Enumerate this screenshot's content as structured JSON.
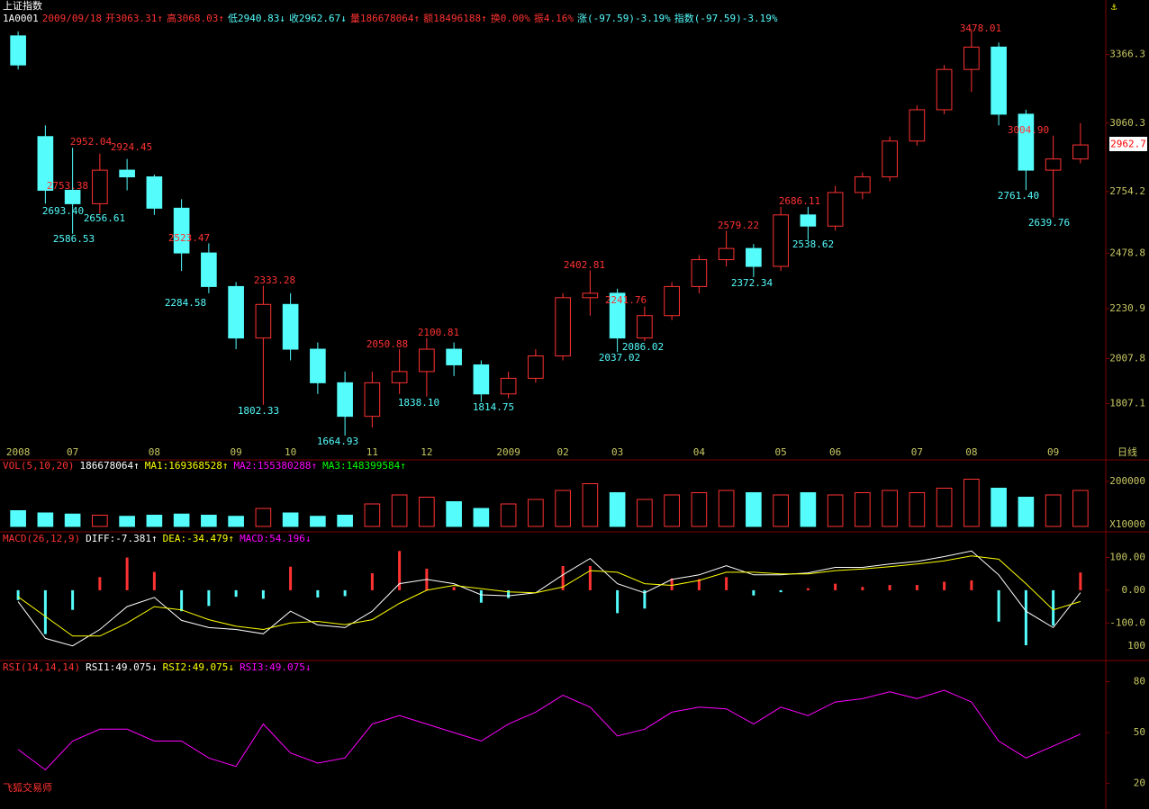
{
  "header": {
    "title": "上证指数",
    "quote": [
      "1A0001",
      "2009/09/18",
      "开3063.31↑",
      "高3068.03↑",
      "低2940.83↓",
      "收2962.67↓",
      "量186678064↑",
      "额18496188↑",
      "换0.00%",
      "振4.16%",
      "涨(-97.59)-3.19%",
      "指数(-97.59)-3.19%"
    ]
  },
  "chart_data": [
    {
      "type": "candlestick",
      "period": "日线",
      "last_label": "2962.7",
      "up_color": "#ff3232",
      "down_color": "#54fcfc",
      "categories": [
        "2008",
        null,
        "07",
        null,
        null,
        "08",
        null,
        null,
        "09",
        null,
        "10",
        null,
        null,
        "11",
        null,
        "12",
        null,
        null,
        "2009",
        null,
        "02",
        null,
        "03",
        null,
        null,
        "04",
        null,
        null,
        "05",
        null,
        "06",
        null,
        null,
        "07",
        null,
        "08",
        null,
        null,
        "09",
        null
      ],
      "open": [
        3450,
        3000,
        2760,
        2700,
        2850,
        2820,
        2680,
        2480,
        2330,
        2100,
        2250,
        2050,
        1900,
        1750,
        1900,
        1950,
        2050,
        1980,
        1850,
        1920,
        2020,
        2280,
        2300,
        2100,
        2200,
        2330,
        2450,
        2500,
        2420,
        2650,
        2600,
        2750,
        2820,
        2980,
        3120,
        3300,
        3400,
        3100,
        2850,
        2900
      ],
      "high": [
        3470,
        3050,
        2950,
        2924,
        2900,
        2830,
        2720,
        2523,
        2350,
        2333,
        2300,
        2080,
        1950,
        1950,
        2050,
        2100,
        2080,
        2000,
        1950,
        2050,
        2300,
        2402,
        2320,
        2241,
        2350,
        2470,
        2579,
        2520,
        2686,
        2686,
        2780,
        2840,
        3000,
        3140,
        3320,
        3478,
        3420,
        3120,
        3004,
        3060
      ],
      "low": [
        3300,
        2700,
        2566,
        2656,
        2760,
        2650,
        2400,
        2300,
        2050,
        1802,
        2000,
        1850,
        1664,
        1700,
        1850,
        1838,
        1930,
        1814,
        1830,
        1900,
        2000,
        2200,
        2037,
        2086,
        2180,
        2300,
        2420,
        2372,
        2400,
        2538,
        2580,
        2720,
        2800,
        2960,
        3100,
        3200,
        3050,
        2761,
        2639,
        2880
      ],
      "close": [
        3320,
        2760,
        2700,
        2850,
        2820,
        2680,
        2480,
        2330,
        2100,
        2250,
        2050,
        1900,
        1750,
        1900,
        1950,
        2050,
        1980,
        1850,
        1920,
        2020,
        2280,
        2300,
        2100,
        2200,
        2330,
        2450,
        2500,
        2420,
        2650,
        2600,
        2750,
        2820,
        2980,
        3120,
        3300,
        3400,
        3100,
        2850,
        2900,
        2962.67
      ],
      "ylim": [
        1640,
        3550
      ],
      "yticks": [
        3366.3,
        3060.3,
        2754.2,
        2478.8,
        2230.9,
        2007.8,
        1807.1
      ],
      "annotations": [
        "2952.04",
        "2753.38",
        "2693.40",
        "2586.53",
        "2656.61",
        "2924.45",
        "2523.47",
        "2284.58",
        "2333.28",
        "1802.33",
        "2050.88",
        "1664.93",
        "2100.81",
        "1838.10",
        "1814.75",
        "2402.81",
        "2241.76",
        "2037.02",
        "2086.02",
        "2579.22",
        "2372.34",
        "2686.11",
        "2538.62",
        "3478.01",
        "3004.90",
        "2761.40",
        "2639.76"
      ]
    },
    {
      "type": "bar",
      "title_parts": [
        "VOL(5,10,20)",
        "186678064↑",
        "MA1:169368528↑",
        "MA2:155380288↑",
        "MA3:148399584↑"
      ],
      "y_unit": "X10000",
      "values": [
        70000,
        60000,
        55000,
        50000,
        45000,
        50000,
        55000,
        50000,
        45000,
        80000,
        60000,
        45000,
        50000,
        100000,
        140000,
        130000,
        110000,
        80000,
        100000,
        120000,
        160000,
        190000,
        150000,
        120000,
        140000,
        150000,
        160000,
        150000,
        140000,
        150000,
        140000,
        150000,
        160000,
        150000,
        170000,
        210000,
        170000,
        130000,
        140000,
        160000
      ],
      "ylim": [
        0,
        240000
      ],
      "yticks": [
        200000
      ]
    },
    {
      "type": "macd",
      "title_parts": [
        "MACD(26,12,9)",
        "DIFF:-7.381↑",
        "DEA:-34.479↑",
        "MACD:54.196↓"
      ],
      "axis_note": "100",
      "series": [
        {
          "color": "#ffffff",
          "values": [
            -35,
            -147,
            -170,
            -120,
            -50,
            -22,
            -92,
            -114,
            -120,
            -133,
            -64,
            -106,
            -114,
            -64,
            20,
            33,
            20,
            -14,
            -17,
            -8,
            47,
            97,
            20,
            -8,
            33,
            47,
            75,
            47,
            47,
            53,
            70,
            70,
            80,
            88,
            103,
            120,
            47,
            -64,
            -114,
            -7.381
          ]
        },
        {
          "color": "#ffff00",
          "values": [
            -20,
            -80,
            -140,
            -140,
            -100,
            -50,
            -60,
            -90,
            -110,
            -120,
            -100,
            -95,
            -105,
            -90,
            -40,
            0,
            15,
            5,
            -5,
            -8,
            10,
            60,
            55,
            20,
            15,
            30,
            55,
            55,
            50,
            50,
            60,
            65,
            72,
            80,
            90,
            105,
            95,
            20,
            -60,
            -34.479
          ]
        },
        {
          "up_color": "#ff3232",
          "down_color": "#54fcfc",
          "values": [
            -30,
            -134,
            -60,
            40,
            100,
            56,
            -64,
            -48,
            -20,
            -26,
            72,
            -22,
            -18,
            52,
            120,
            66,
            10,
            -38,
            -24,
            0,
            74,
            74,
            -70,
            -56,
            36,
            34,
            40,
            -16,
            -6,
            6,
            20,
            10,
            16,
            16,
            26,
            30,
            -96,
            -168,
            -108,
            54.196
          ]
        }
      ],
      "ylim": [
        -190,
        140
      ],
      "yticks": [
        {
          "value": 100,
          "label": "100.00"
        },
        {
          "value": 0,
          "label": "0.00"
        },
        {
          "value": -100,
          "label": "-100.0"
        }
      ]
    },
    {
      "type": "line",
      "title_parts": [
        "RSI(14,14,14)",
        "RSI1:49.075↓",
        "RSI2:49.075↓",
        "RSI3:49.075↓"
      ],
      "series": [
        {
          "color": "#ff00ff",
          "values": [
            40,
            28,
            45,
            52,
            52,
            45,
            45,
            35,
            30,
            55,
            38,
            32,
            35,
            55,
            60,
            55,
            50,
            45,
            55,
            62,
            72,
            65,
            48,
            52,
            62,
            65,
            64,
            55,
            65,
            60,
            68,
            70,
            74,
            70,
            75,
            68,
            45,
            35,
            42,
            49.075
          ]
        }
      ],
      "ylim": [
        15,
        84
      ],
      "yticks": [
        80,
        50,
        20
      ]
    }
  ],
  "footer": "飞狐交易师"
}
